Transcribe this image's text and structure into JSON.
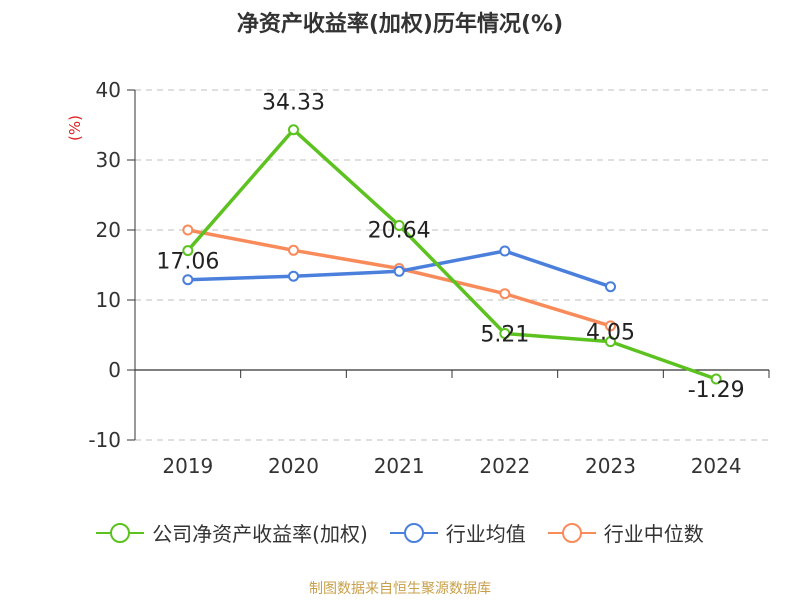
{
  "chart_data": {
    "type": "line",
    "title": "净资产收益率(加权)历年情况(%)",
    "ylabel": "(%)",
    "xlabel": "",
    "categories": [
      "2019",
      "2020",
      "2021",
      "2022",
      "2023",
      "2024"
    ],
    "ylim": [
      -10,
      40
    ],
    "yticks": [
      -10,
      0,
      10,
      20,
      30,
      40
    ],
    "grid": true,
    "legend_position": "bottom",
    "series": [
      {
        "name": "公司净资产收益率(加权)",
        "color": "#5cc21f",
        "values": [
          17.06,
          34.33,
          20.64,
          5.21,
          4.05,
          -1.29
        ],
        "labels": [
          "17.06",
          "34.33",
          "20.64",
          "5.21",
          "4.05",
          "-1.29"
        ]
      },
      {
        "name": "行业均值",
        "color": "#4a7fdc",
        "values": [
          12.9,
          13.4,
          14.1,
          17.0,
          11.9,
          null
        ]
      },
      {
        "name": "行业中位数",
        "color": "#f98b5b",
        "values": [
          20.0,
          17.1,
          14.5,
          10.9,
          6.3,
          null
        ]
      }
    ]
  },
  "ylabel_color": "#e02020",
  "source": "制图数据来自恒生聚源数据库"
}
